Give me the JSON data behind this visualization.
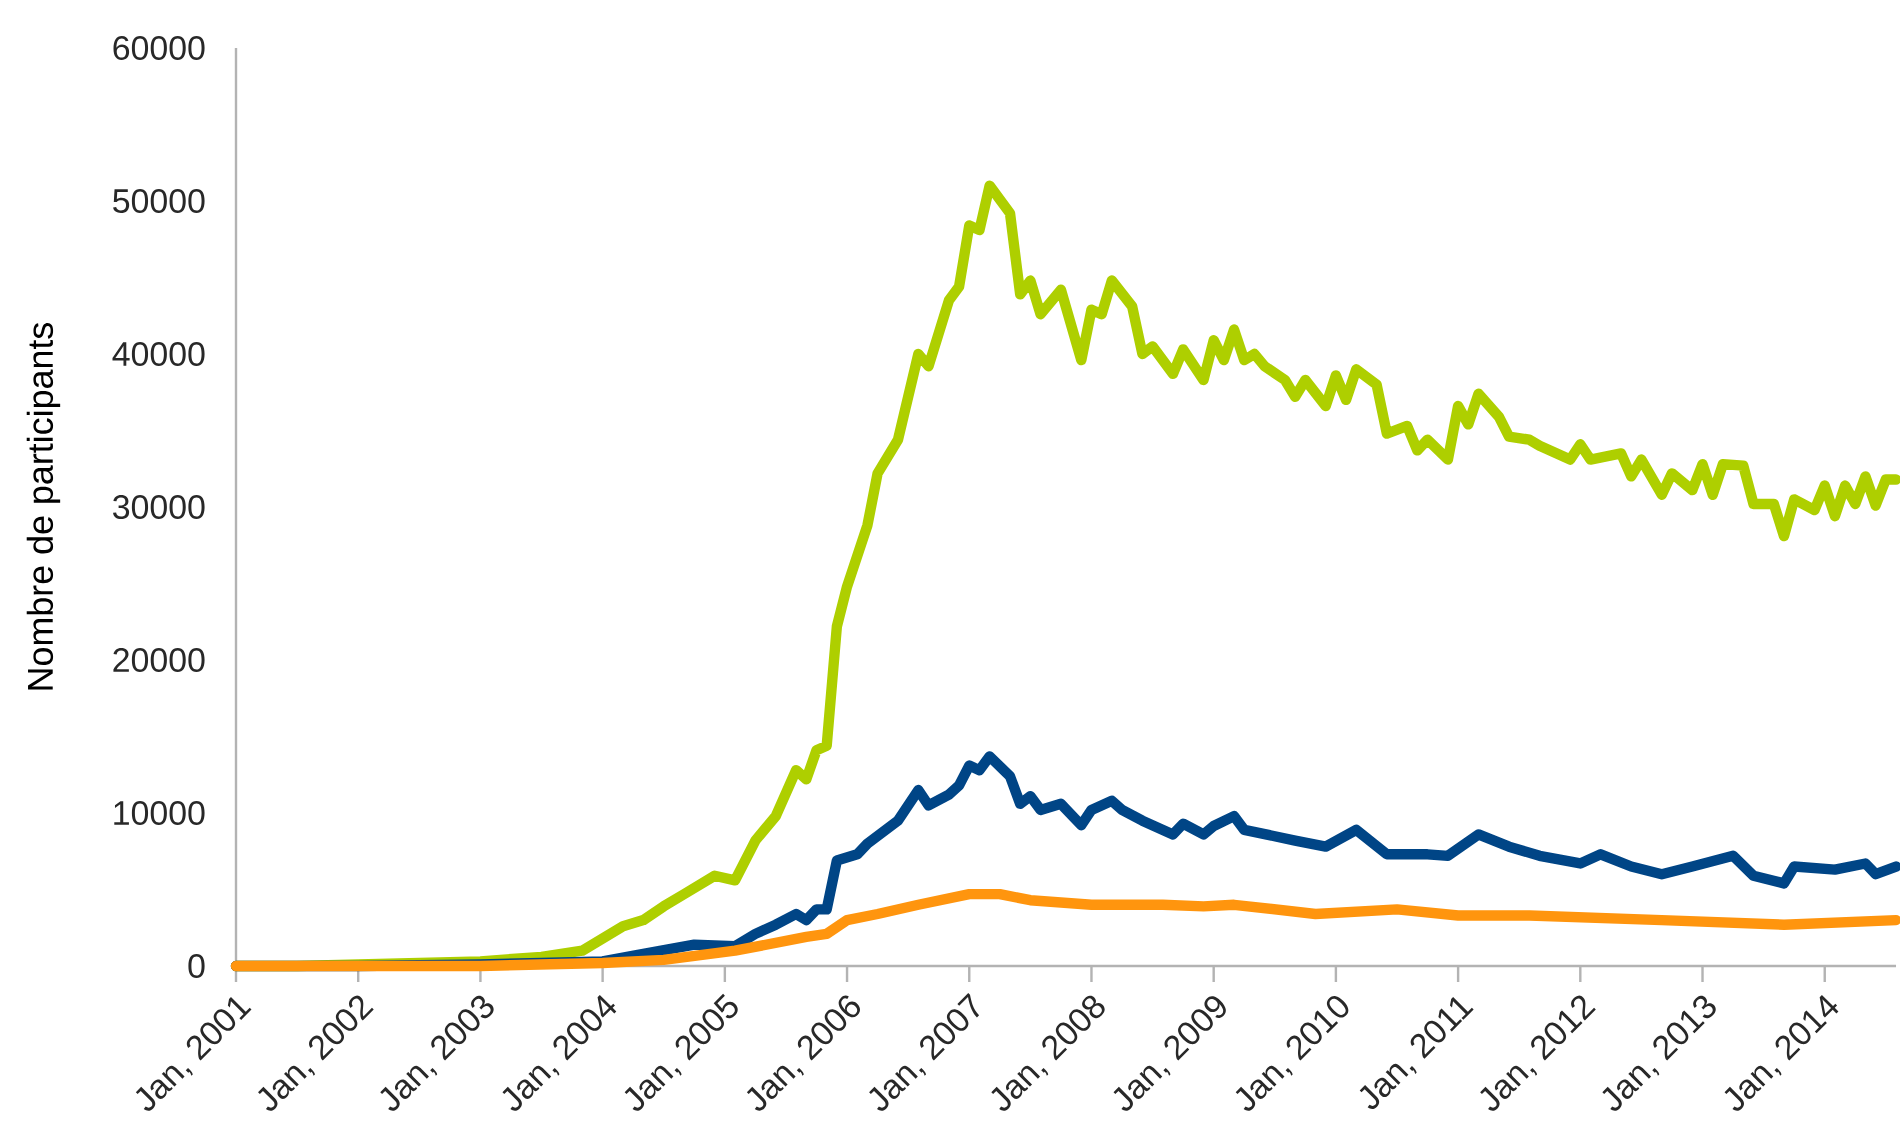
{
  "chart_data": {
    "type": "line",
    "ylabel": "Nombre de participants",
    "marker": "none",
    "line_style": "solid",
    "xlim": [
      "2001-01",
      "2014-08"
    ],
    "ylim": [
      0,
      60000
    ],
    "yticks": [
      0,
      10000,
      20000,
      30000,
      40000,
      50000,
      60000
    ],
    "xticks": [
      {
        "value": "2001-01",
        "label": "Jan, 2001"
      },
      {
        "value": "2002-01",
        "label": "Jan, 2002"
      },
      {
        "value": "2003-01",
        "label": "Jan, 2003"
      },
      {
        "value": "2004-01",
        "label": "Jan, 2004"
      },
      {
        "value": "2005-01",
        "label": "Jan, 2005"
      },
      {
        "value": "2006-01",
        "label": "Jan, 2006"
      },
      {
        "value": "2007-01",
        "label": "Jan, 2007"
      },
      {
        "value": "2008-01",
        "label": "Jan, 2008"
      },
      {
        "value": "2009-01",
        "label": "Jan, 2009"
      },
      {
        "value": "2010-01",
        "label": "Jan, 2010"
      },
      {
        "value": "2011-01",
        "label": "Jan, 2011"
      },
      {
        "value": "2012-01",
        "label": "Jan, 2012"
      },
      {
        "value": "2013-01",
        "label": "Jan, 2013"
      },
      {
        "value": "2014-01",
        "label": "Jan, 2014"
      }
    ],
    "series": [
      {
        "color": "#aecf00",
        "x": [
          "2001-01",
          "2001-07",
          "2002-01",
          "2002-07",
          "2003-01",
          "2003-07",
          "2003-11",
          "2004-03",
          "2004-05",
          "2004-07",
          "2004-09",
          "2004-12",
          "2005-02",
          "2005-04",
          "2005-06",
          "2005-08",
          "2005-09",
          "2005-10",
          "2005-11",
          "2005-12",
          "2006-01",
          "2006-03",
          "2006-04",
          "2006-06",
          "2006-08",
          "2006-09",
          "2006-11",
          "2006-12",
          "2007-01",
          "2007-02",
          "2007-03",
          "2007-05",
          "2007-06",
          "2007-07",
          "2007-08",
          "2007-10",
          "2007-12",
          "2008-01",
          "2008-02",
          "2008-03",
          "2008-05",
          "2008-06",
          "2008-07",
          "2008-09",
          "2008-10",
          "2008-12",
          "2009-01",
          "2009-02",
          "2009-03",
          "2009-04",
          "2009-05",
          "2009-06",
          "2009-08",
          "2009-09",
          "2009-10",
          "2009-12",
          "2010-01",
          "2010-02",
          "2010-03",
          "2010-05",
          "2010-06",
          "2010-08",
          "2010-09",
          "2010-10",
          "2010-12",
          "2011-01",
          "2011-02",
          "2011-03",
          "2011-05",
          "2011-06",
          "2011-08",
          "2011-09",
          "2011-12",
          "2012-01",
          "2012-02",
          "2012-05",
          "2012-06",
          "2012-07",
          "2012-09",
          "2012-10",
          "2012-12",
          "2013-01",
          "2013-02",
          "2013-03",
          "2013-05",
          "2013-06",
          "2013-08",
          "2013-09",
          "2013-10",
          "2013-12",
          "2014-01",
          "2014-02",
          "2014-03",
          "2014-04",
          "2014-05",
          "2014-06",
          "2014-07",
          "2014-08"
        ],
        "values": [
          0,
          0,
          100,
          200,
          300,
          600,
          1000,
          2600,
          3000,
          3900,
          4700,
          5900,
          5600,
          8200,
          9800,
          12800,
          12200,
          14100,
          14400,
          22200,
          24800,
          28800,
          32200,
          34400,
          40000,
          39200,
          43500,
          44400,
          48400,
          48100,
          51000,
          49200,
          43900,
          44800,
          42600,
          44200,
          39600,
          42900,
          42600,
          44800,
          43100,
          40000,
          40500,
          38700,
          40300,
          38300,
          40900,
          39600,
          41600,
          39600,
          40000,
          39200,
          38300,
          37200,
          38300,
          36600,
          38600,
          37000,
          39000,
          38000,
          34800,
          35300,
          33700,
          34400,
          33100,
          36600,
          35400,
          37400,
          35900,
          34600,
          34400,
          34000,
          33100,
          34100,
          33100,
          33500,
          32000,
          33100,
          30800,
          32200,
          31100,
          32800,
          30800,
          32800,
          32700,
          30200,
          30200,
          28100,
          30500,
          29800,
          31400,
          29400,
          31400,
          30200,
          32000,
          30100,
          31800,
          31800
        ]
      },
      {
        "color": "#004586",
        "x": [
          "2001-01",
          "2002-01",
          "2003-01",
          "2003-07",
          "2004-01",
          "2004-05",
          "2004-10",
          "2005-02",
          "2005-04",
          "2005-06",
          "2005-08",
          "2005-09",
          "2005-10",
          "2005-11",
          "2005-12",
          "2006-02",
          "2006-03",
          "2006-06",
          "2006-08",
          "2006-09",
          "2006-11",
          "2006-12",
          "2007-01",
          "2007-02",
          "2007-03",
          "2007-05",
          "2007-06",
          "2007-07",
          "2007-08",
          "2007-10",
          "2007-12",
          "2008-01",
          "2008-03",
          "2008-04",
          "2008-06",
          "2008-09",
          "2008-10",
          "2008-12",
          "2009-01",
          "2009-03",
          "2009-04",
          "2009-09",
          "2009-12",
          "2010-03",
          "2010-06",
          "2010-10",
          "2010-12",
          "2011-03",
          "2011-06",
          "2011-09",
          "2012-01",
          "2012-03",
          "2012-06",
          "2012-09",
          "2012-12",
          "2013-04",
          "2013-06",
          "2013-09",
          "2013-10",
          "2014-02",
          "2014-05",
          "2014-06",
          "2014-08"
        ],
        "values": [
          0,
          0,
          100,
          200,
          300,
          800,
          1400,
          1300,
          2100,
          2700,
          3400,
          3000,
          3700,
          3700,
          6900,
          7300,
          8000,
          9500,
          11500,
          10500,
          11200,
          11800,
          13100,
          12800,
          13700,
          12400,
          10600,
          11100,
          10200,
          10600,
          9200,
          10200,
          10800,
          10200,
          9500,
          8600,
          9300,
          8600,
          9150,
          9800,
          8900,
          8200,
          7800,
          8900,
          7300,
          7300,
          7200,
          8600,
          7800,
          7200,
          6700,
          7300,
          6500,
          6000,
          6500,
          7200,
          5900,
          5400,
          6500,
          6300,
          6700,
          6000,
          6500
        ]
      },
      {
        "color": "#ff950e",
        "x": [
          "2001-01",
          "2003-01",
          "2004-01",
          "2004-07",
          "2005-02",
          "2005-09",
          "2005-11",
          "2006-01",
          "2006-04",
          "2006-08",
          "2007-01",
          "2007-04",
          "2007-07",
          "2008-01",
          "2008-08",
          "2008-12",
          "2009-03",
          "2009-11",
          "2010-07",
          "2011-01",
          "2011-08",
          "2012-09",
          "2013-09",
          "2014-08"
        ],
        "values": [
          0,
          0,
          200,
          400,
          1000,
          1900,
          2100,
          3000,
          3400,
          4000,
          4700,
          4700,
          4300,
          4000,
          4000,
          3900,
          4000,
          3400,
          3700,
          3300,
          3300,
          3000,
          2700,
          3000
        ]
      }
    ]
  }
}
